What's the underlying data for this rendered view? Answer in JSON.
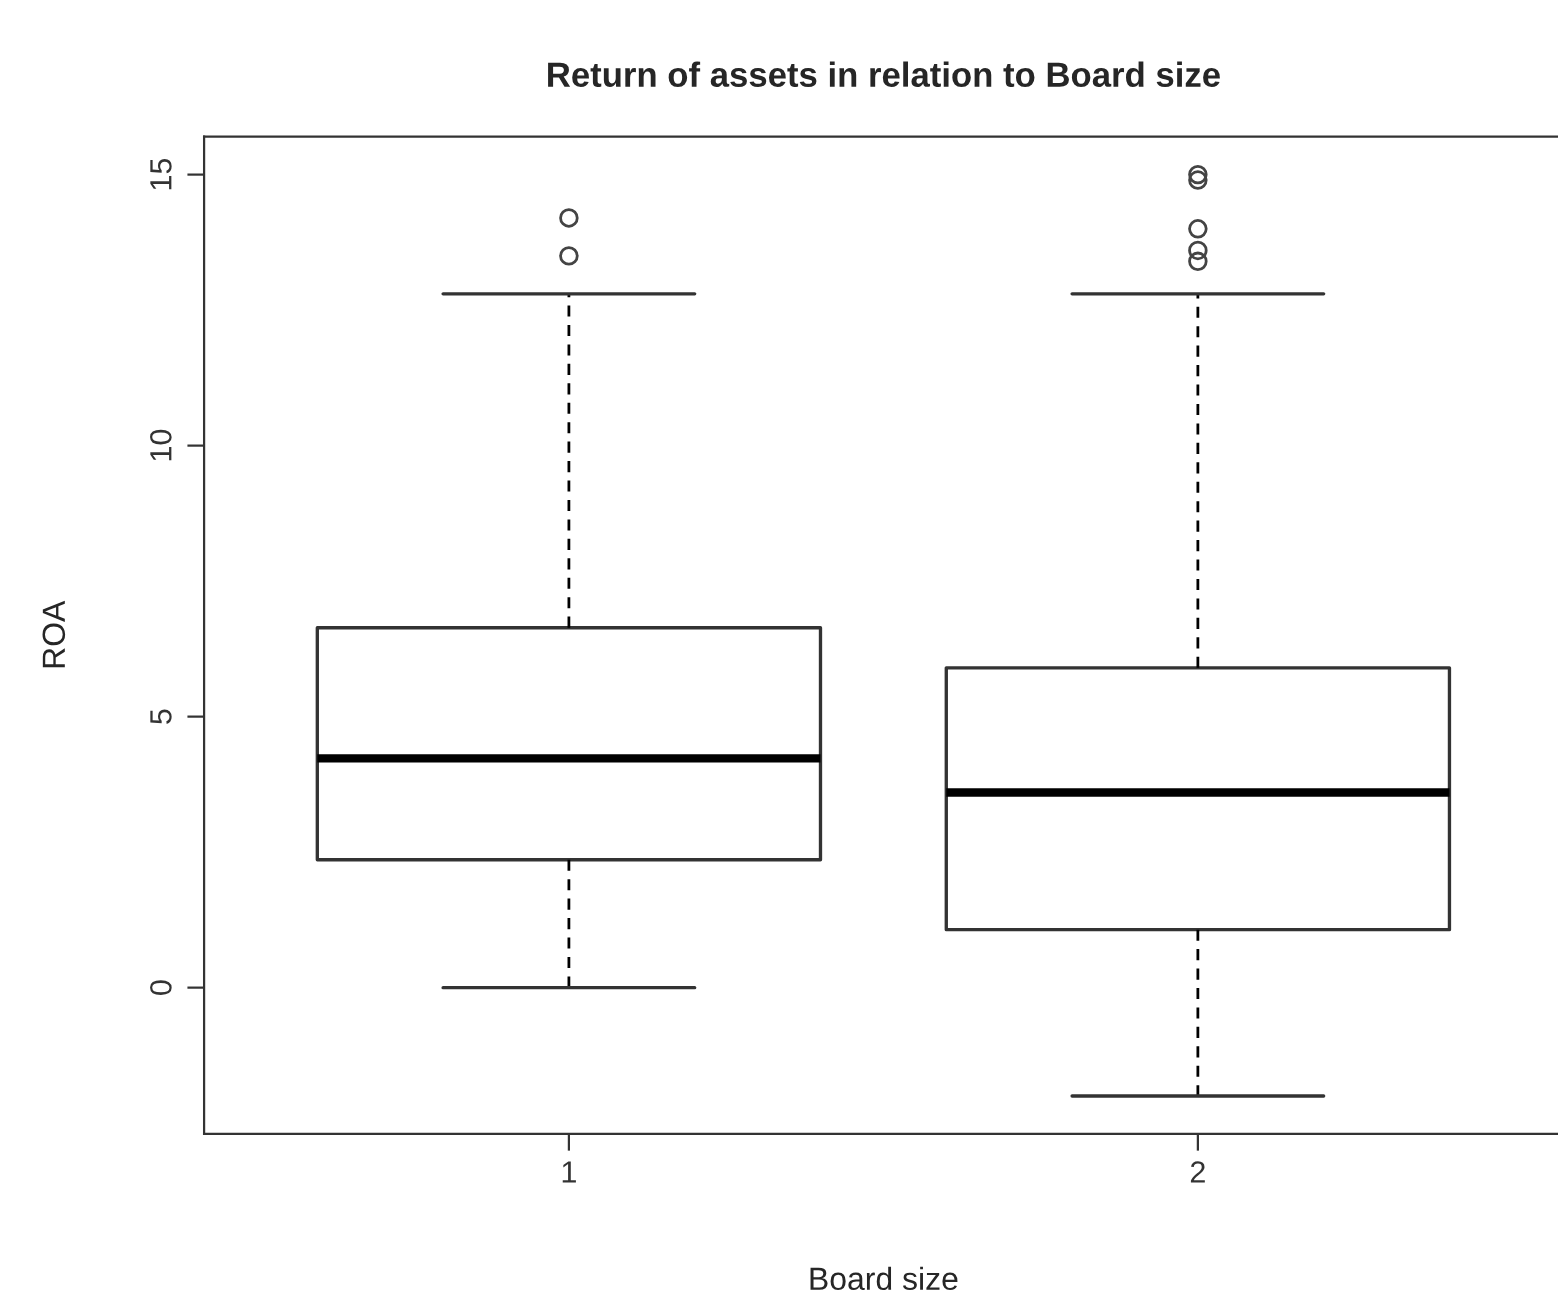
{
  "chart_data": {
    "type": "box",
    "title": "Return of assets in relation to Board size",
    "xlabel": "Board size",
    "ylabel": "ROA",
    "categories": [
      "1",
      "2"
    ],
    "boxes": [
      {
        "low": 0,
        "q1": 2.36,
        "median": 4.23,
        "q3": 6.64,
        "high": 12.8,
        "outliers": [
          13.5,
          14.2
        ]
      },
      {
        "low": -2.0,
        "q1": 1.07,
        "median": 3.6,
        "q3": 5.9,
        "high": 12.8,
        "outliers": [
          13.4,
          13.6,
          14.0,
          14.9,
          15.0
        ]
      }
    ],
    "ylim": [
      -2.7,
      15.7
    ],
    "yticks": [
      0,
      5,
      10,
      15
    ],
    "grid": false,
    "marker": "circle"
  }
}
